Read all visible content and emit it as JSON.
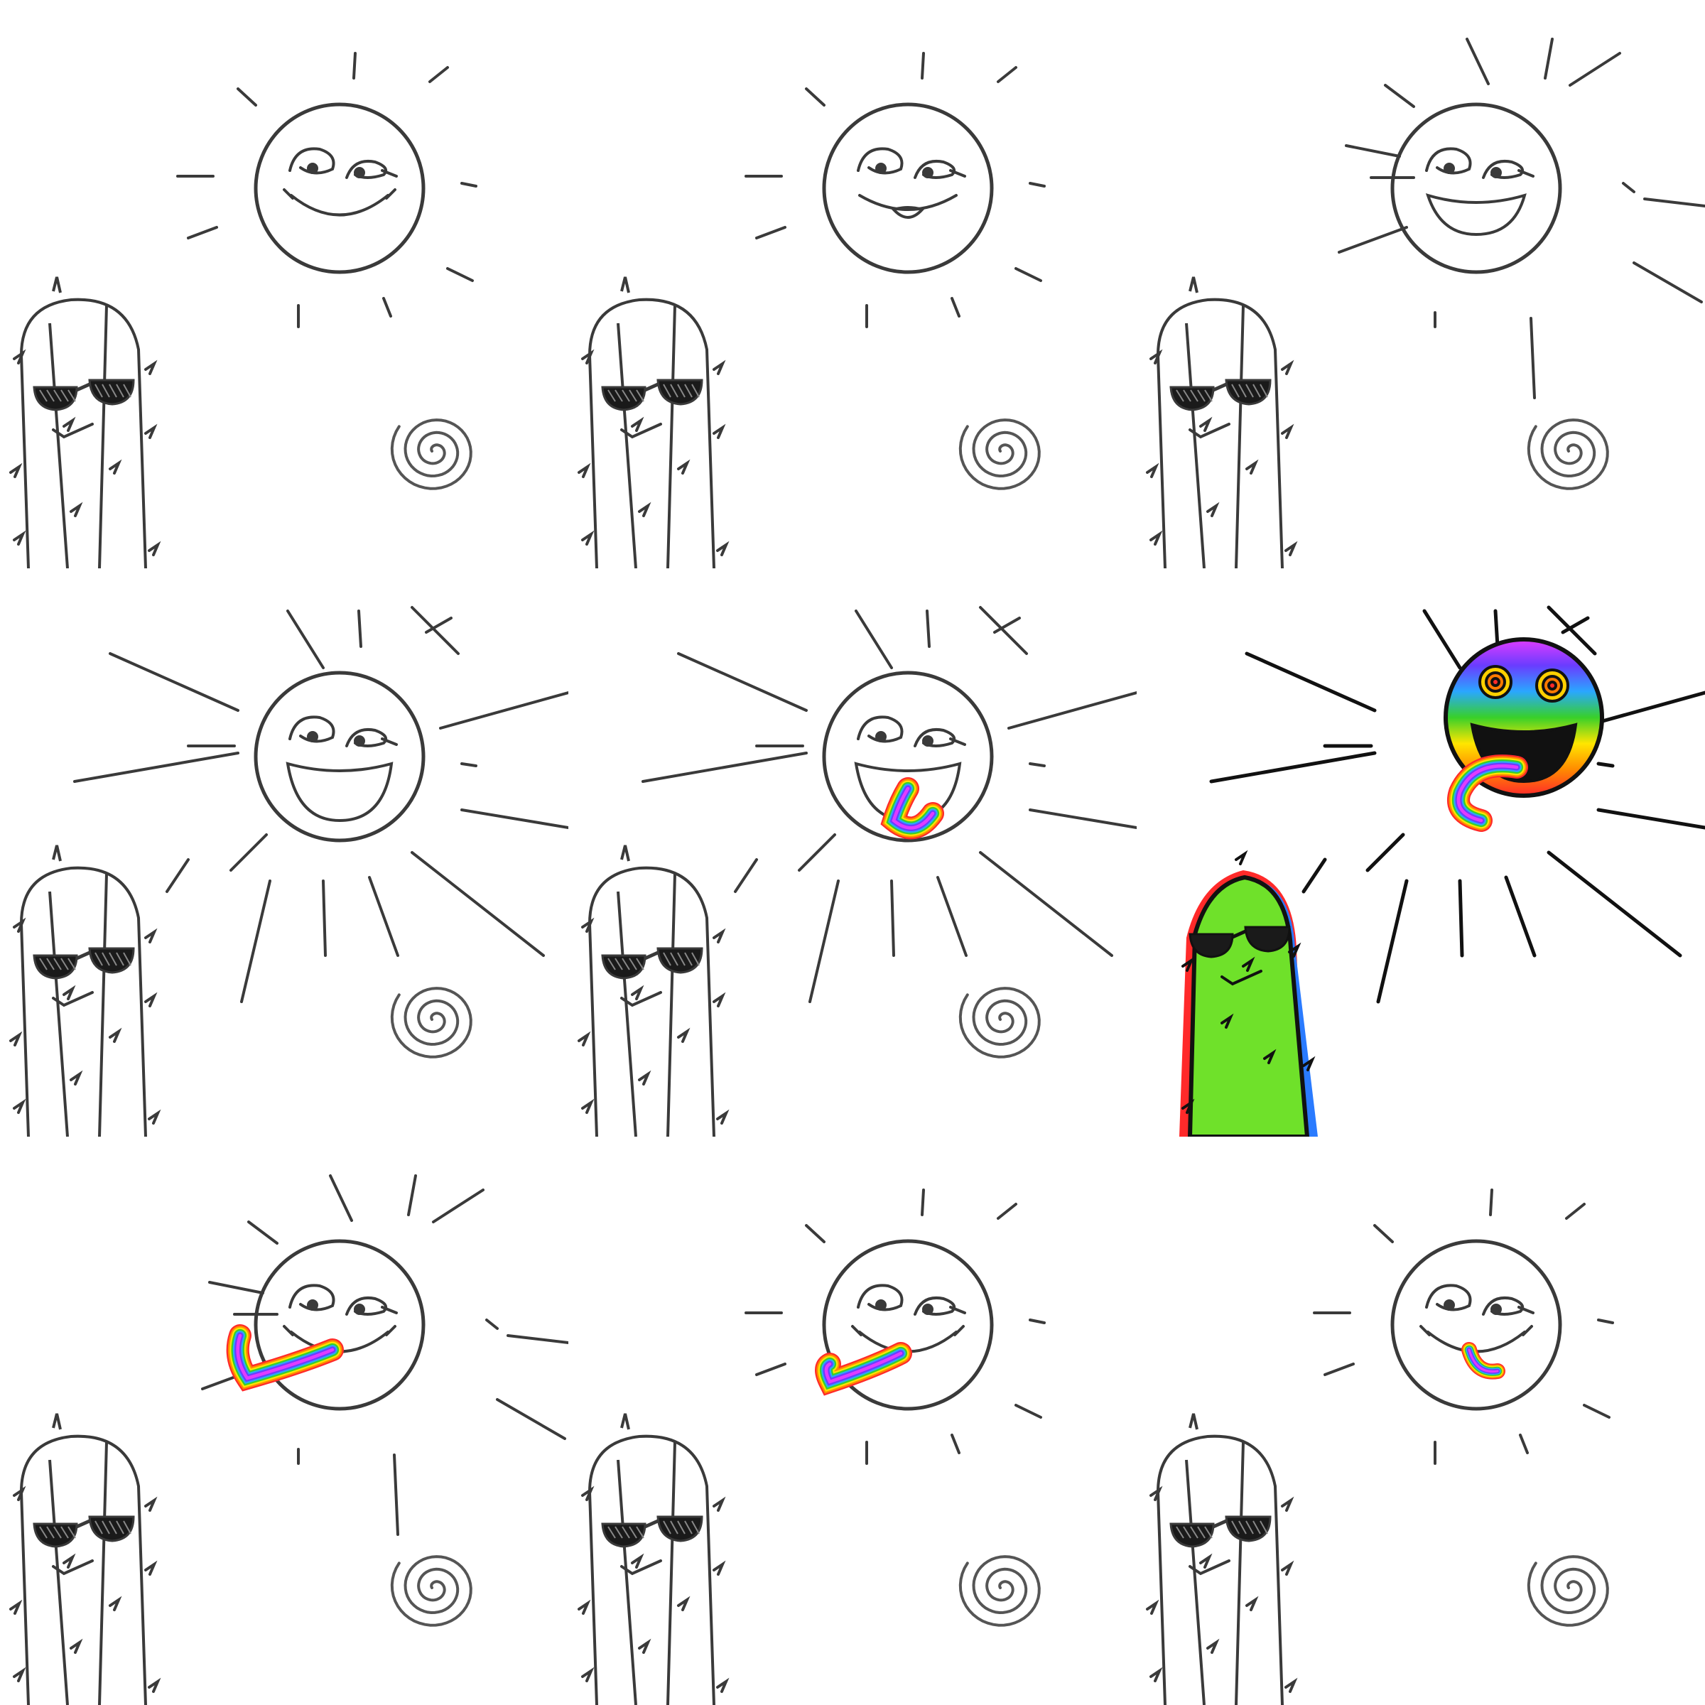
{
  "comic": {
    "layout": {
      "rows": 3,
      "columns": 3
    },
    "panels": [
      {
        "id": 1,
        "sun_mouth": "smile",
        "tongue": "none",
        "rays": "short",
        "colored": false
      },
      {
        "id": 2,
        "sun_mouth": "small-open",
        "tongue": "none",
        "rays": "short",
        "colored": false
      },
      {
        "id": 3,
        "sun_mouth": "open",
        "tongue": "none",
        "rays": "medium",
        "colored": false
      },
      {
        "id": 4,
        "sun_mouth": "wide-open",
        "tongue": "none",
        "rays": "long",
        "colored": false
      },
      {
        "id": 5,
        "sun_mouth": "wide-open",
        "tongue": "short",
        "rays": "long",
        "colored": false
      },
      {
        "id": 6,
        "sun_mouth": "wide-open",
        "tongue": "long",
        "rays": "long",
        "colored": true
      },
      {
        "id": 7,
        "sun_mouth": "smile",
        "tongue": "retracting",
        "rays": "medium",
        "colored": false
      },
      {
        "id": 8,
        "sun_mouth": "smile",
        "tongue": "retracting-small",
        "rays": "short",
        "colored": false
      },
      {
        "id": 9,
        "sun_mouth": "smile",
        "tongue": "tiny",
        "rays": "short",
        "colored": false
      }
    ],
    "colors": {
      "ink": "#3a3a3a",
      "ink_dark": "#111111",
      "cactus_green": "#6fe12a",
      "glasses": "#1a1a1a",
      "rainbow": [
        "#ff2a2a",
        "#ff8a00",
        "#ffe600",
        "#38d02a",
        "#2aa7ff",
        "#6a3cff",
        "#e03cff"
      ]
    },
    "icons": {
      "sun": "smiling-sun-icon",
      "cactus": "cool-cactus-icon",
      "spiral": "spiral-icon",
      "tongue": "rainbow-tongue-icon"
    }
  }
}
